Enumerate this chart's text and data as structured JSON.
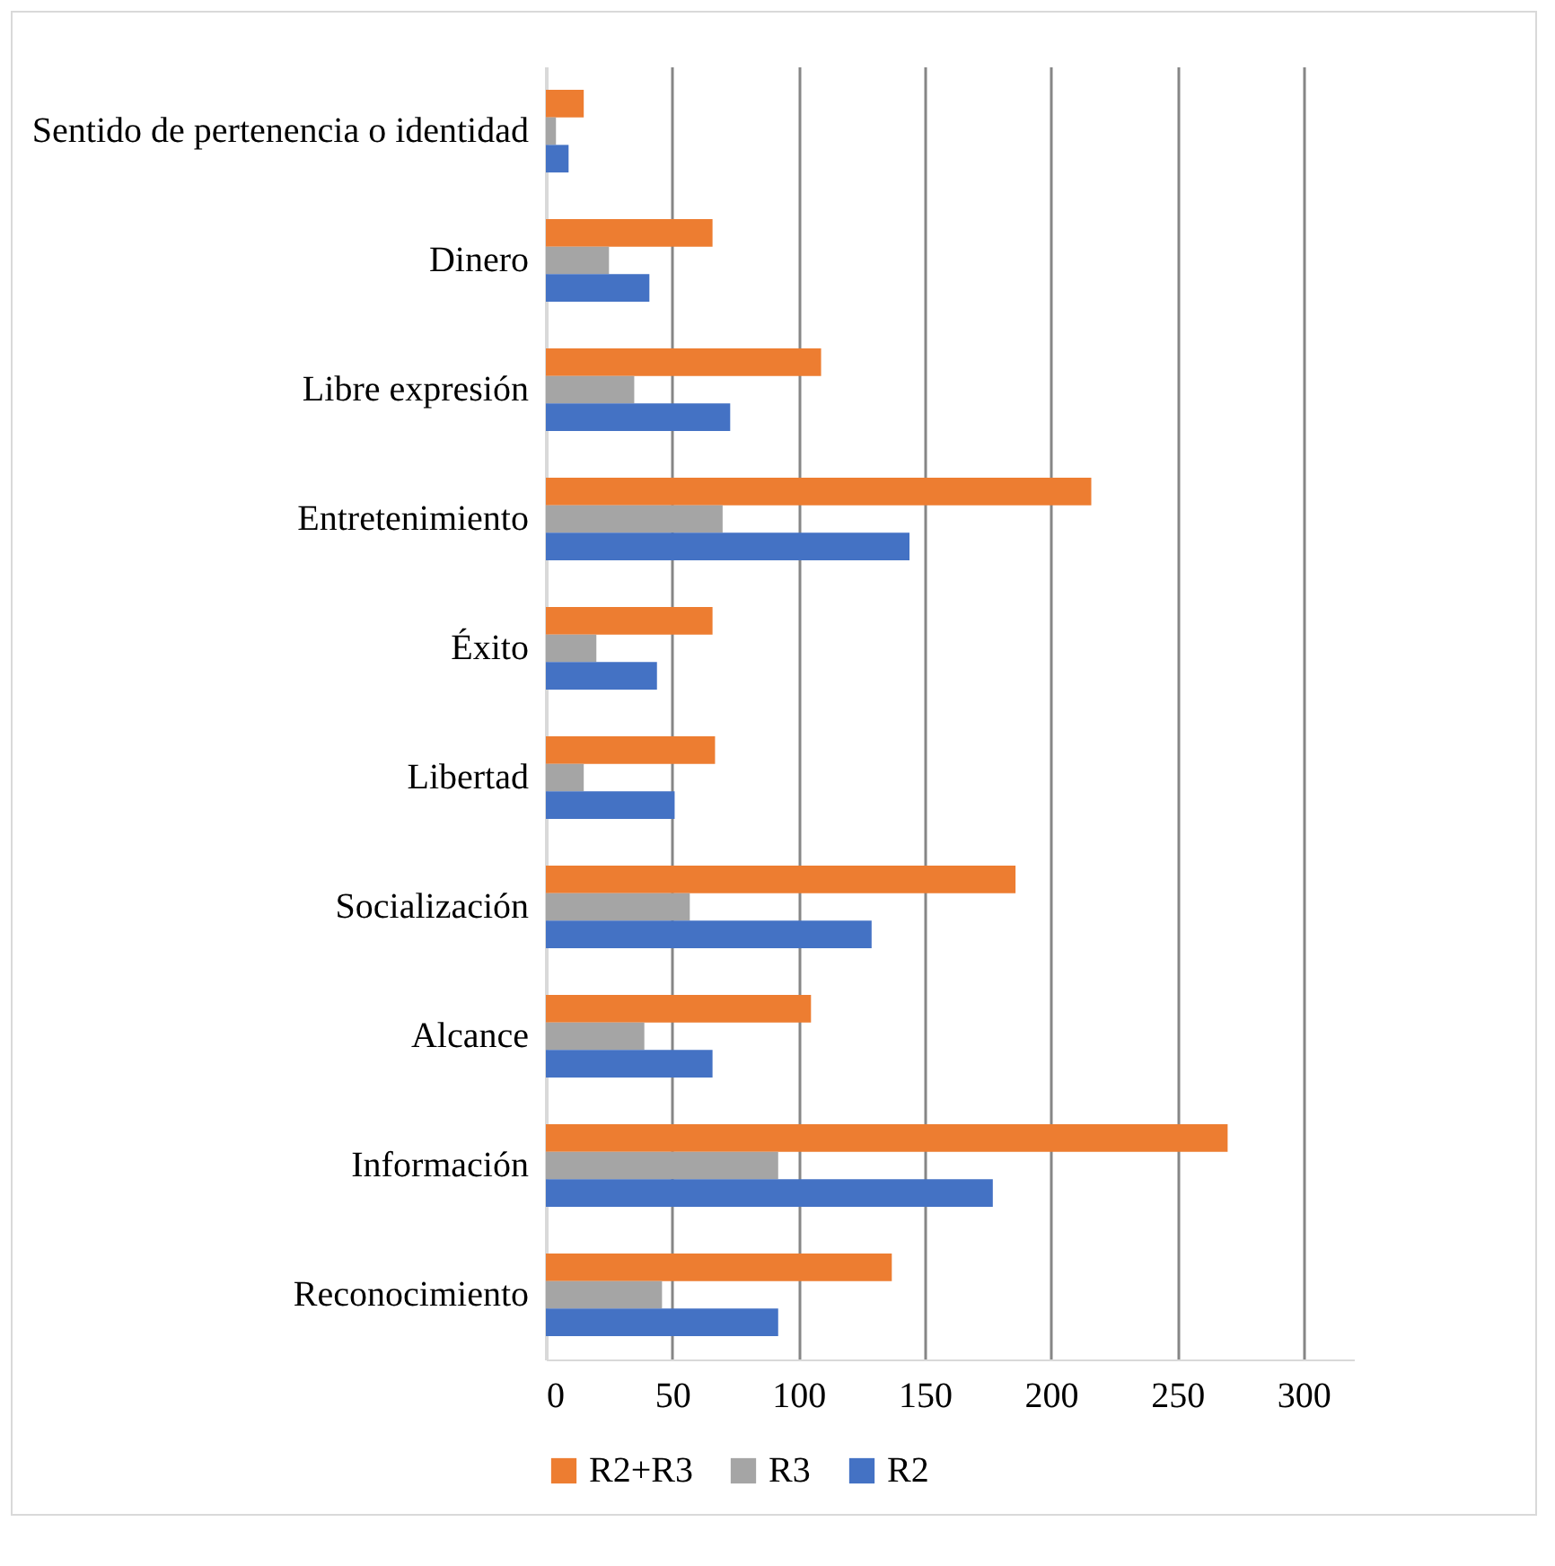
{
  "chart_data": {
    "type": "bar",
    "orientation": "horizontal",
    "categories": [
      "Sentido de pertenencia o identidad",
      "Dinero",
      "Libre expresión",
      "Entretenimiento",
      "Éxito",
      "Libertad",
      "Socialización",
      "Alcance",
      "Información",
      "Reconocimiento"
    ],
    "series": [
      {
        "name": "R2+R3",
        "color": "#ed7d31",
        "values": [
          15,
          66,
          109,
          216,
          66,
          67,
          186,
          105,
          270,
          137
        ]
      },
      {
        "name": "R3",
        "color": "#a5a5a5",
        "values": [
          4,
          25,
          35,
          70,
          20,
          15,
          57,
          39,
          92,
          46
        ]
      },
      {
        "name": "R2",
        "color": "#4472c4",
        "values": [
          9,
          41,
          73,
          144,
          44,
          51,
          129,
          66,
          177,
          92
        ]
      }
    ],
    "xlim": [
      0,
      320
    ],
    "xticks": [
      0,
      50,
      100,
      150,
      200,
      250,
      300
    ],
    "grid": "x",
    "legend": "bottom"
  }
}
